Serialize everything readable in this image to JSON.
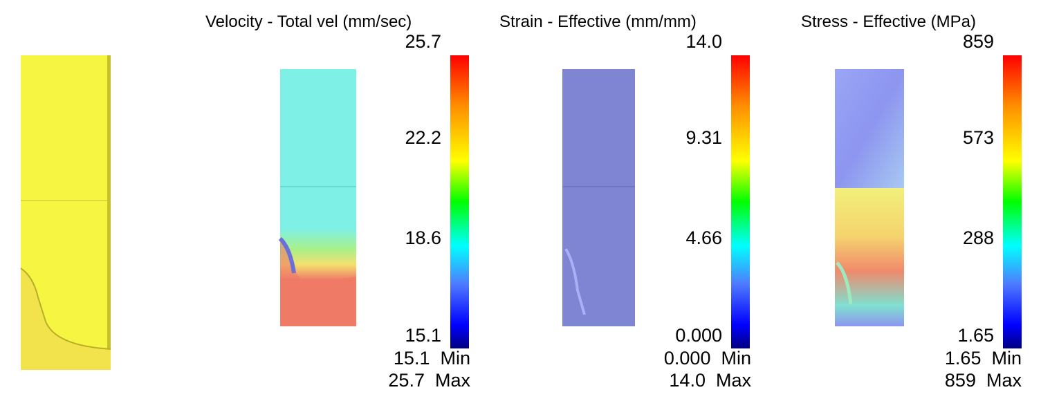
{
  "colors": {
    "workpiece_yellow": "#f5f542",
    "velocity_cyan": "#7ff0e6",
    "velocity_red": "#ef7a66",
    "strain_blue": "#7f85d3",
    "stress_blue": "#8d95f0",
    "stress_yellow": "#f2f07a",
    "stress_red": "#f08a6c"
  },
  "panels": [
    {
      "title": "Velocity - Total vel (mm/sec)",
      "max_label": "25.7",
      "ticks": [
        "22.2",
        "18.6",
        "15.1"
      ],
      "min_row": {
        "value": "15.1",
        "label": "Min"
      },
      "max_row": {
        "value": "25.7",
        "label": "Max"
      }
    },
    {
      "title": "Strain - Effective (mm/mm)",
      "max_label": "14.0",
      "ticks": [
        "9.31",
        "4.66",
        "0.000"
      ],
      "min_row": {
        "value": "0.000",
        "label": "Min"
      },
      "max_row": {
        "value": "14.0",
        "label": "Max"
      }
    },
    {
      "title": "Stress - Effective (MPa)",
      "max_label": "859",
      "ticks": [
        "573",
        "288",
        "1.65"
      ],
      "min_row": {
        "value": "1.65",
        "label": "Min"
      },
      "max_row": {
        "value": "859",
        "label": "Max"
      }
    }
  ]
}
